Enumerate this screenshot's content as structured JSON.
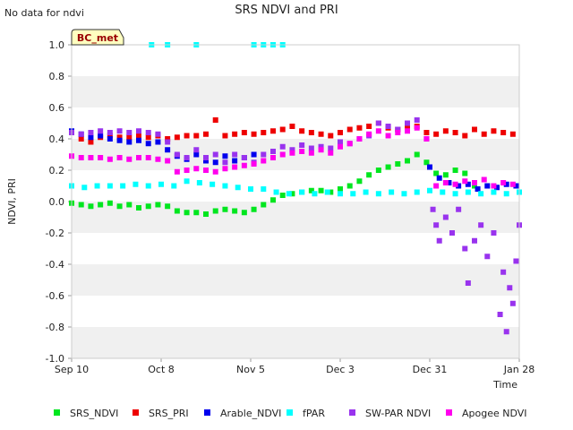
{
  "note": "No data for ndvi",
  "chart_data": {
    "type": "scatter",
    "title": "SRS NDVI and PRI",
    "xlabel": "Time",
    "ylabel": "NDVI, PRI",
    "badge": "BC_met",
    "x_range": [
      "2023-09-10",
      "2024-01-28"
    ],
    "x_ticks": [
      {
        "date": "2023-09-10",
        "label": "Sep 10"
      },
      {
        "date": "2023-10-08",
        "label": "Oct 8"
      },
      {
        "date": "2023-11-05",
        "label": "Nov 5"
      },
      {
        "date": "2023-12-03",
        "label": "Dec 3"
      },
      {
        "date": "2023-12-31",
        "label": "Dec 31"
      },
      {
        "date": "2024-01-28",
        "label": "Jan 28"
      }
    ],
    "ylim": [
      -1.0,
      1.0
    ],
    "y_ticks": [
      "-1.0",
      "-0.8",
      "-0.6",
      "-0.4",
      "-0.2",
      "0.0",
      "0.2",
      "0.4",
      "0.6",
      "0.8",
      "1.0"
    ],
    "grid": "alternating horizontal bands",
    "legend_position": "bottom",
    "series": [
      {
        "name": "SRS_NDVI",
        "color": "#00e61f",
        "points": [
          [
            "2023-09-10",
            -0.01
          ],
          [
            "2023-09-13",
            -0.02
          ],
          [
            "2023-09-16",
            -0.03
          ],
          [
            "2023-09-19",
            -0.02
          ],
          [
            "2023-09-22",
            -0.01
          ],
          [
            "2023-09-25",
            -0.03
          ],
          [
            "2023-09-28",
            -0.02
          ],
          [
            "2023-10-01",
            -0.04
          ],
          [
            "2023-10-04",
            -0.03
          ],
          [
            "2023-10-07",
            -0.02
          ],
          [
            "2023-10-10",
            -0.03
          ],
          [
            "2023-10-13",
            -0.06
          ],
          [
            "2023-10-16",
            -0.07
          ],
          [
            "2023-10-19",
            -0.07
          ],
          [
            "2023-10-22",
            -0.08
          ],
          [
            "2023-10-25",
            -0.06
          ],
          [
            "2023-10-28",
            -0.05
          ],
          [
            "2023-10-31",
            -0.06
          ],
          [
            "2023-11-03",
            -0.07
          ],
          [
            "2023-11-06",
            -0.05
          ],
          [
            "2023-11-09",
            -0.02
          ],
          [
            "2023-11-12",
            0.01
          ],
          [
            "2023-11-15",
            0.04
          ],
          [
            "2023-11-18",
            0.05
          ],
          [
            "2023-11-21",
            0.06
          ],
          [
            "2023-11-24",
            0.07
          ],
          [
            "2023-11-27",
            0.07
          ],
          [
            "2023-11-30",
            0.06
          ],
          [
            "2023-12-03",
            0.08
          ],
          [
            "2023-12-06",
            0.1
          ],
          [
            "2023-12-09",
            0.13
          ],
          [
            "2023-12-12",
            0.17
          ],
          [
            "2023-12-15",
            0.2
          ],
          [
            "2023-12-18",
            0.22
          ],
          [
            "2023-12-21",
            0.24
          ],
          [
            "2023-12-24",
            0.26
          ],
          [
            "2023-12-27",
            0.3
          ],
          [
            "2023-12-30",
            0.25
          ],
          [
            "2024-01-02",
            0.18
          ],
          [
            "2024-01-05",
            0.17
          ],
          [
            "2024-01-08",
            0.2
          ],
          [
            "2024-01-11",
            0.18
          ],
          [
            "2024-01-14",
            0.1
          ]
        ]
      },
      {
        "name": "SRS_PRI",
        "color": "#ee0000",
        "points": [
          [
            "2023-09-10",
            0.44
          ],
          [
            "2023-09-13",
            0.4
          ],
          [
            "2023-09-16",
            0.38
          ],
          [
            "2023-09-19",
            0.41
          ],
          [
            "2023-09-22",
            0.42
          ],
          [
            "2023-09-25",
            0.41
          ],
          [
            "2023-09-28",
            0.41
          ],
          [
            "2023-10-01",
            0.42
          ],
          [
            "2023-10-04",
            0.41
          ],
          [
            "2023-10-07",
            0.42
          ],
          [
            "2023-10-10",
            0.4
          ],
          [
            "2023-10-13",
            0.41
          ],
          [
            "2023-10-16",
            0.42
          ],
          [
            "2023-10-19",
            0.42
          ],
          [
            "2023-10-22",
            0.43
          ],
          [
            "2023-10-25",
            0.52
          ],
          [
            "2023-10-28",
            0.42
          ],
          [
            "2023-10-31",
            0.43
          ],
          [
            "2023-11-03",
            0.44
          ],
          [
            "2023-11-06",
            0.43
          ],
          [
            "2023-11-09",
            0.44
          ],
          [
            "2023-11-12",
            0.45
          ],
          [
            "2023-11-15",
            0.46
          ],
          [
            "2023-11-18",
            0.48
          ],
          [
            "2023-11-21",
            0.45
          ],
          [
            "2023-11-24",
            0.44
          ],
          [
            "2023-11-27",
            0.43
          ],
          [
            "2023-11-30",
            0.42
          ],
          [
            "2023-12-03",
            0.44
          ],
          [
            "2023-12-06",
            0.46
          ],
          [
            "2023-12-09",
            0.47
          ],
          [
            "2023-12-12",
            0.48
          ],
          [
            "2023-12-15",
            0.5
          ],
          [
            "2023-12-18",
            0.47
          ],
          [
            "2023-12-21",
            0.46
          ],
          [
            "2023-12-24",
            0.47
          ],
          [
            "2023-12-27",
            0.48
          ],
          [
            "2023-12-30",
            0.44
          ],
          [
            "2024-01-02",
            0.43
          ],
          [
            "2024-01-05",
            0.45
          ],
          [
            "2024-01-08",
            0.44
          ],
          [
            "2024-01-11",
            0.42
          ],
          [
            "2024-01-14",
            0.46
          ],
          [
            "2024-01-17",
            0.43
          ],
          [
            "2024-01-20",
            0.45
          ],
          [
            "2024-01-23",
            0.44
          ],
          [
            "2024-01-26",
            0.43
          ]
        ]
      },
      {
        "name": "Arable_NDVI",
        "color": "#0000ee",
        "points": [
          [
            "2023-09-10",
            0.45
          ],
          [
            "2023-09-13",
            0.43
          ],
          [
            "2023-09-16",
            0.41
          ],
          [
            "2023-09-19",
            0.42
          ],
          [
            "2023-09-22",
            0.4
          ],
          [
            "2023-09-25",
            0.39
          ],
          [
            "2023-09-28",
            0.38
          ],
          [
            "2023-10-01",
            0.39
          ],
          [
            "2023-10-04",
            0.37
          ],
          [
            "2023-10-07",
            0.38
          ],
          [
            "2023-10-10",
            0.33
          ],
          [
            "2023-10-13",
            0.29
          ],
          [
            "2023-10-16",
            0.27
          ],
          [
            "2023-10-19",
            0.3
          ],
          [
            "2023-10-22",
            0.26
          ],
          [
            "2023-10-25",
            0.25
          ],
          [
            "2023-10-28",
            0.29
          ],
          [
            "2023-10-31",
            0.26
          ],
          [
            "2023-11-03",
            0.28
          ],
          [
            "2023-11-06",
            0.3
          ],
          [
            "2023-12-31",
            0.22
          ],
          [
            "2024-01-03",
            0.15
          ],
          [
            "2024-01-06",
            0.12
          ],
          [
            "2024-01-09",
            0.1
          ],
          [
            "2024-01-12",
            0.11
          ],
          [
            "2024-01-15",
            0.08
          ],
          [
            "2024-01-18",
            0.1
          ],
          [
            "2024-01-21",
            0.09
          ],
          [
            "2024-01-24",
            0.11
          ],
          [
            "2024-01-27",
            0.1
          ]
        ]
      },
      {
        "name": "fPAR",
        "color": "#00ffff",
        "points": [
          [
            "2023-09-10",
            0.1
          ],
          [
            "2023-09-14",
            0.09
          ],
          [
            "2023-09-18",
            0.1
          ],
          [
            "2023-09-22",
            0.1
          ],
          [
            "2023-09-26",
            0.1
          ],
          [
            "2023-09-30",
            0.11
          ],
          [
            "2023-10-04",
            0.1
          ],
          [
            "2023-10-08",
            0.11
          ],
          [
            "2023-10-12",
            0.1
          ],
          [
            "2023-10-16",
            0.13
          ],
          [
            "2023-10-20",
            0.12
          ],
          [
            "2023-10-24",
            0.11
          ],
          [
            "2023-10-28",
            0.1
          ],
          [
            "2023-11-01",
            0.09
          ],
          [
            "2023-11-05",
            0.08
          ],
          [
            "2023-11-09",
            0.08
          ],
          [
            "2023-11-13",
            0.06
          ],
          [
            "2023-11-17",
            0.05
          ],
          [
            "2023-11-21",
            0.06
          ],
          [
            "2023-11-25",
            0.05
          ],
          [
            "2023-11-29",
            0.06
          ],
          [
            "2023-12-03",
            0.05
          ],
          [
            "2023-12-07",
            0.05
          ],
          [
            "2023-12-11",
            0.06
          ],
          [
            "2023-12-15",
            0.05
          ],
          [
            "2023-12-19",
            0.06
          ],
          [
            "2023-12-23",
            0.05
          ],
          [
            "2023-12-27",
            0.06
          ],
          [
            "2023-12-31",
            0.07
          ],
          [
            "2024-01-04",
            0.06
          ],
          [
            "2024-01-08",
            0.05
          ],
          [
            "2024-01-12",
            0.06
          ],
          [
            "2024-01-16",
            0.05
          ],
          [
            "2024-01-20",
            0.06
          ],
          [
            "2024-01-24",
            0.05
          ],
          [
            "2024-01-28",
            0.06
          ],
          [
            "2023-10-05",
            1.0
          ],
          [
            "2023-10-10",
            1.0
          ],
          [
            "2023-10-19",
            1.0
          ],
          [
            "2023-11-06",
            1.0
          ],
          [
            "2023-11-09",
            1.0
          ],
          [
            "2023-11-12",
            1.0
          ],
          [
            "2023-11-15",
            1.0
          ]
        ]
      },
      {
        "name": "SW-PAR NDVI",
        "color": "#9933ee",
        "points": [
          [
            "2023-09-10",
            0.44
          ],
          [
            "2023-09-13",
            0.43
          ],
          [
            "2023-09-16",
            0.44
          ],
          [
            "2023-09-19",
            0.45
          ],
          [
            "2023-09-22",
            0.44
          ],
          [
            "2023-09-25",
            0.45
          ],
          [
            "2023-09-28",
            0.44
          ],
          [
            "2023-10-01",
            0.45
          ],
          [
            "2023-10-04",
            0.44
          ],
          [
            "2023-10-07",
            0.43
          ],
          [
            "2023-10-10",
            0.38
          ],
          [
            "2023-10-13",
            0.3
          ],
          [
            "2023-10-16",
            0.28
          ],
          [
            "2023-10-19",
            0.33
          ],
          [
            "2023-10-22",
            0.28
          ],
          [
            "2023-10-25",
            0.3
          ],
          [
            "2023-10-28",
            0.25
          ],
          [
            "2023-10-31",
            0.3
          ],
          [
            "2023-11-03",
            0.28
          ],
          [
            "2023-11-06",
            0.25
          ],
          [
            "2023-11-09",
            0.3
          ],
          [
            "2023-11-12",
            0.32
          ],
          [
            "2023-11-15",
            0.35
          ],
          [
            "2023-11-18",
            0.33
          ],
          [
            "2023-11-21",
            0.36
          ],
          [
            "2023-11-24",
            0.34
          ],
          [
            "2023-11-27",
            0.35
          ],
          [
            "2023-11-30",
            0.34
          ],
          [
            "2023-12-03",
            0.38
          ],
          [
            "2023-12-06",
            0.37
          ],
          [
            "2023-12-09",
            0.4
          ],
          [
            "2023-12-12",
            0.42
          ],
          [
            "2023-12-15",
            0.5
          ],
          [
            "2023-12-18",
            0.48
          ],
          [
            "2023-12-21",
            0.46
          ],
          [
            "2023-12-24",
            0.5
          ],
          [
            "2023-12-27",
            0.52
          ],
          [
            "2023-12-30",
            0.4
          ],
          [
            "2024-01-01",
            -0.05
          ],
          [
            "2024-01-02",
            -0.15
          ],
          [
            "2024-01-03",
            -0.25
          ],
          [
            "2024-01-05",
            -0.1
          ],
          [
            "2024-01-07",
            -0.2
          ],
          [
            "2024-01-09",
            -0.05
          ],
          [
            "2024-01-11",
            -0.3
          ],
          [
            "2024-01-12",
            -0.52
          ],
          [
            "2024-01-14",
            -0.25
          ],
          [
            "2024-01-16",
            -0.15
          ],
          [
            "2024-01-18",
            -0.35
          ],
          [
            "2024-01-20",
            -0.2
          ],
          [
            "2024-01-22",
            -0.72
          ],
          [
            "2024-01-23",
            -0.45
          ],
          [
            "2024-01-24",
            -0.83
          ],
          [
            "2024-01-25",
            -0.55
          ],
          [
            "2024-01-26",
            -0.65
          ],
          [
            "2024-01-27",
            -0.38
          ],
          [
            "2024-01-28",
            -0.15
          ]
        ]
      },
      {
        "name": "Apogee NDVI",
        "color": "#ff00ee",
        "points": [
          [
            "2023-09-10",
            0.29
          ],
          [
            "2023-09-13",
            0.28
          ],
          [
            "2023-09-16",
            0.28
          ],
          [
            "2023-09-19",
            0.28
          ],
          [
            "2023-09-22",
            0.27
          ],
          [
            "2023-09-25",
            0.28
          ],
          [
            "2023-09-28",
            0.27
          ],
          [
            "2023-10-01",
            0.28
          ],
          [
            "2023-10-04",
            0.28
          ],
          [
            "2023-10-07",
            0.27
          ],
          [
            "2023-10-10",
            0.26
          ],
          [
            "2023-10-13",
            0.19
          ],
          [
            "2023-10-16",
            0.2
          ],
          [
            "2023-10-19",
            0.21
          ],
          [
            "2023-10-22",
            0.2
          ],
          [
            "2023-10-25",
            0.19
          ],
          [
            "2023-10-28",
            0.21
          ],
          [
            "2023-10-31",
            0.22
          ],
          [
            "2023-11-03",
            0.23
          ],
          [
            "2023-11-06",
            0.24
          ],
          [
            "2023-11-09",
            0.26
          ],
          [
            "2023-11-12",
            0.28
          ],
          [
            "2023-11-15",
            0.3
          ],
          [
            "2023-11-18",
            0.31
          ],
          [
            "2023-11-21",
            0.32
          ],
          [
            "2023-11-24",
            0.31
          ],
          [
            "2023-11-27",
            0.33
          ],
          [
            "2023-11-30",
            0.31
          ],
          [
            "2023-12-03",
            0.35
          ],
          [
            "2023-12-06",
            0.37
          ],
          [
            "2023-12-09",
            0.4
          ],
          [
            "2023-12-12",
            0.43
          ],
          [
            "2023-12-15",
            0.45
          ],
          [
            "2023-12-18",
            0.42
          ],
          [
            "2023-12-21",
            0.44
          ],
          [
            "2023-12-24",
            0.45
          ],
          [
            "2023-12-27",
            0.47
          ],
          [
            "2023-12-30",
            0.4
          ],
          [
            "2024-01-02",
            0.1
          ],
          [
            "2024-01-05",
            0.12
          ],
          [
            "2024-01-08",
            0.11
          ],
          [
            "2024-01-11",
            0.13
          ],
          [
            "2024-01-14",
            0.12
          ],
          [
            "2024-01-17",
            0.14
          ],
          [
            "2024-01-20",
            0.1
          ],
          [
            "2024-01-23",
            0.12
          ],
          [
            "2024-01-26",
            0.11
          ]
        ]
      }
    ]
  }
}
